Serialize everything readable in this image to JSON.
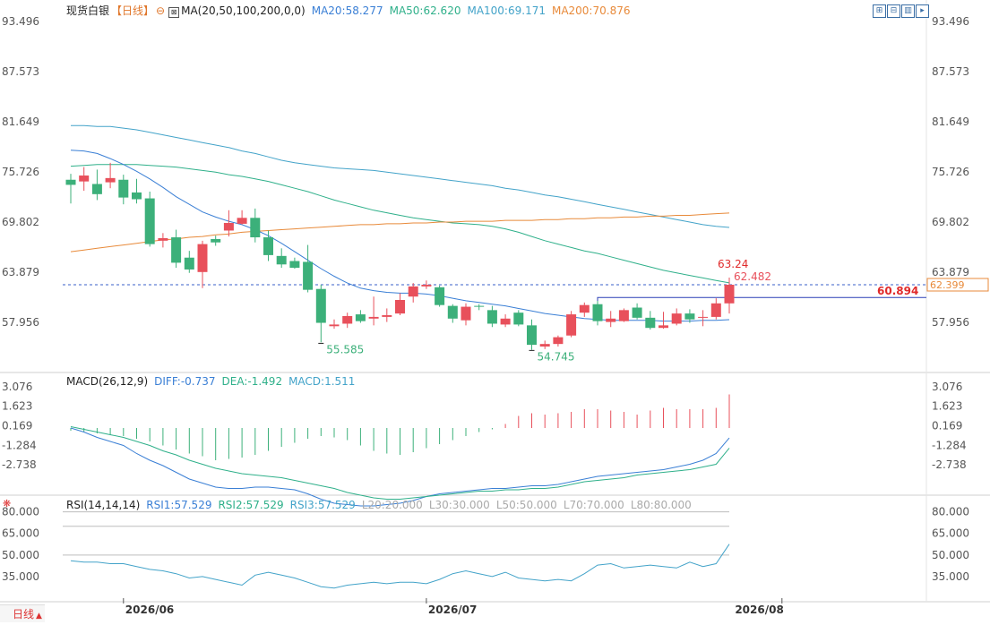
{
  "header": {
    "symbol": "现货白银",
    "period": "【日线】",
    "ma_params": "MA(20,50,100,200,0,0)",
    "ma20": "MA20:58.277",
    "ma50": "MA50:62.620",
    "ma100": "MA100:69.171",
    "ma200": "MA200:70.876"
  },
  "macd_header": {
    "params": "MACD(26,12,9)",
    "diff": "DIFF:-0.737",
    "dea": "DEA:-1.492",
    "macd": "MACD:1.511"
  },
  "rsi_header": {
    "params": "RSI(14,14,14)",
    "rsi1": "RSI1:57.529",
    "rsi2": "RSI2:57.529",
    "rsi3": "RSI3:57.529",
    "l20": "L20:20.000",
    "l30": "L30:30.000",
    "l50": "L50:50.000",
    "l70": "L70:70.000",
    "l80": "L80:80.000"
  },
  "bottom_bar": {
    "period_label": "日线",
    "arrow": "▲"
  },
  "colors": {
    "up": "#e8505b",
    "down": "#3cb07a",
    "ma20": "#3a7fd5",
    "ma50": "#2fb08a",
    "ma100": "#43a3c9",
    "ma200": "#e88a3a",
    "price_line": "#3a5fc8",
    "grid": "#e3e3e3"
  },
  "icons": [
    "settings-icon",
    "toolbar-icon-1",
    "toolbar-icon-2",
    "toolbar-icon-3",
    "toolbar-icon-4"
  ],
  "chart_data": [
    {
      "type": "candlestick",
      "title": "现货白银【日线】",
      "x_labels": [
        "2026/06",
        "2026/07",
        "2026/08"
      ],
      "x_label_index": [
        4,
        27,
        54
      ],
      "y_ticks": [
        "93.496",
        "87.573",
        "81.649",
        "75.726",
        "69.802",
        "63.879",
        "57.956"
      ],
      "ylim": [
        51.4,
        93.496
      ],
      "ohlc": [
        [
          74.8,
          75.5,
          72.0,
          74.2
        ],
        [
          74.6,
          76.3,
          73.5,
          75.3
        ],
        [
          74.3,
          76.0,
          72.4,
          73.1
        ],
        [
          74.5,
          76.8,
          73.8,
          75.0
        ],
        [
          74.8,
          75.4,
          71.9,
          72.7
        ],
        [
          73.3,
          74.9,
          72.0,
          72.5
        ],
        [
          72.6,
          73.4,
          66.9,
          67.2
        ],
        [
          67.6,
          68.5,
          66.8,
          67.9
        ],
        [
          68.0,
          68.9,
          64.4,
          65.0
        ],
        [
          65.6,
          66.4,
          63.8,
          64.2
        ],
        [
          63.9,
          67.6,
          62.0,
          67.2
        ],
        [
          67.8,
          68.2,
          67.0,
          67.4
        ],
        [
          68.8,
          71.2,
          68.1,
          69.7
        ],
        [
          69.6,
          71.2,
          69.5,
          70.3
        ],
        [
          70.3,
          71.4,
          67.4,
          68.0
        ],
        [
          68.0,
          68.8,
          65.2,
          65.9
        ],
        [
          65.8,
          66.7,
          64.4,
          64.8
        ],
        [
          65.2,
          65.6,
          64.3,
          64.4
        ],
        [
          65.1,
          67.1,
          61.5,
          61.8
        ],
        [
          61.9,
          62.4,
          55.6,
          57.9
        ],
        [
          57.5,
          58.3,
          57.2,
          57.7
        ],
        [
          57.8,
          59.1,
          57.3,
          58.7
        ],
        [
          58.9,
          59.4,
          57.9,
          58.1
        ],
        [
          58.4,
          61.0,
          57.6,
          58.6
        ],
        [
          58.6,
          59.6,
          58.0,
          58.8
        ],
        [
          59.0,
          61.4,
          58.8,
          60.6
        ],
        [
          61.0,
          62.6,
          60.3,
          62.2
        ],
        [
          62.2,
          62.9,
          61.9,
          62.4
        ],
        [
          62.1,
          62.3,
          59.8,
          60.0
        ],
        [
          59.9,
          60.1,
          57.9,
          58.4
        ],
        [
          58.2,
          60.2,
          57.6,
          59.8
        ],
        [
          59.9,
          60.1,
          59.4,
          59.8
        ],
        [
          59.4,
          59.9,
          57.4,
          57.8
        ],
        [
          57.7,
          58.9,
          57.4,
          58.4
        ],
        [
          59.1,
          59.4,
          57.5,
          57.7
        ],
        [
          57.6,
          58.3,
          54.7,
          55.3
        ],
        [
          55.1,
          55.8,
          54.8,
          55.4
        ],
        [
          55.4,
          56.4,
          55.1,
          56.2
        ],
        [
          56.4,
          59.3,
          56.2,
          58.9
        ],
        [
          59.1,
          60.3,
          58.6,
          60.0
        ],
        [
          60.1,
          60.5,
          57.6,
          58.1
        ],
        [
          58.0,
          59.3,
          57.4,
          58.4
        ],
        [
          58.1,
          59.6,
          58.0,
          59.4
        ],
        [
          59.7,
          60.2,
          58.3,
          58.5
        ],
        [
          58.5,
          59.3,
          57.1,
          57.3
        ],
        [
          57.3,
          59.2,
          57.2,
          57.6
        ],
        [
          57.8,
          59.6,
          57.6,
          59.0
        ],
        [
          59.0,
          59.5,
          57.9,
          58.3
        ],
        [
          58.6,
          59.4,
          57.5,
          58.6
        ],
        [
          58.6,
          60.8,
          58.3,
          60.2
        ],
        [
          60.2,
          63.24,
          59.0,
          62.399
        ]
      ],
      "ma20": [
        78.3,
        78.2,
        77.9,
        77.3,
        76.6,
        75.8,
        74.9,
        73.9,
        72.8,
        71.9,
        71.0,
        70.4,
        69.9,
        69.5,
        68.9,
        68.2,
        67.3,
        66.3,
        65.3,
        64.3,
        63.4,
        62.6,
        62.0,
        61.7,
        61.5,
        61.4,
        61.4,
        61.3,
        61.1,
        60.8,
        60.5,
        60.3,
        60.1,
        59.9,
        59.6,
        59.3,
        59.0,
        58.8,
        58.6,
        58.4,
        58.3,
        58.2,
        58.2,
        58.2,
        58.2,
        58.1,
        58.1,
        58.1,
        58.2,
        58.2,
        58.277
      ],
      "ma50": [
        76.4,
        76.5,
        76.6,
        76.6,
        76.6,
        76.6,
        76.5,
        76.4,
        76.3,
        76.1,
        75.9,
        75.7,
        75.4,
        75.2,
        74.9,
        74.6,
        74.2,
        73.8,
        73.4,
        72.9,
        72.4,
        72.0,
        71.6,
        71.2,
        70.9,
        70.6,
        70.3,
        70.1,
        69.9,
        69.7,
        69.6,
        69.5,
        69.3,
        69.0,
        68.6,
        68.1,
        67.6,
        67.2,
        66.8,
        66.4,
        66.1,
        65.7,
        65.3,
        64.9,
        64.5,
        64.1,
        63.8,
        63.5,
        63.2,
        62.9,
        62.62
      ],
      "ma100": [
        81.2,
        81.2,
        81.1,
        81.1,
        80.9,
        80.7,
        80.4,
        80.1,
        79.8,
        79.5,
        79.2,
        78.9,
        78.6,
        78.2,
        77.9,
        77.5,
        77.1,
        76.8,
        76.6,
        76.4,
        76.2,
        76.1,
        76.0,
        75.9,
        75.7,
        75.5,
        75.3,
        75.1,
        74.9,
        74.7,
        74.5,
        74.3,
        74.1,
        73.8,
        73.6,
        73.3,
        73.0,
        72.8,
        72.5,
        72.2,
        71.9,
        71.6,
        71.3,
        71.0,
        70.7,
        70.4,
        70.1,
        69.8,
        69.5,
        69.3,
        69.171
      ],
      "ma200": [
        66.3,
        66.5,
        66.7,
        66.9,
        67.1,
        67.3,
        67.5,
        67.7,
        67.8,
        68.0,
        68.1,
        68.3,
        68.4,
        68.6,
        68.7,
        68.8,
        68.9,
        69.0,
        69.1,
        69.2,
        69.3,
        69.4,
        69.5,
        69.5,
        69.6,
        69.6,
        69.7,
        69.7,
        69.8,
        69.8,
        69.9,
        69.9,
        69.9,
        70.0,
        70.0,
        70.0,
        70.1,
        70.1,
        70.2,
        70.2,
        70.3,
        70.3,
        70.4,
        70.4,
        70.5,
        70.5,
        70.6,
        70.6,
        70.7,
        70.8,
        70.876
      ],
      "current_price": "62.399",
      "current_price_value": 62.399,
      "level_line_value": 60.894,
      "level_line_label": "60.894",
      "annotations": [
        {
          "text": "55.585",
          "value": 55.585,
          "index": 19
        },
        {
          "text": "54.745",
          "value": 54.745,
          "index": 35
        },
        {
          "text": "63.24",
          "value": 63.24,
          "index": 50
        },
        {
          "text": "62.482",
          "value": 62.482,
          "index": 50
        }
      ]
    },
    {
      "type": "bar",
      "title": "MACD(26,12,9)",
      "y_ticks": [
        "3.076",
        "1.623",
        "0.169",
        "-1.284",
        "-2.738"
      ],
      "ylim": [
        -4.8,
        3.6
      ],
      "macd_hist": [
        -0.2,
        -0.3,
        -0.4,
        -0.5,
        -0.6,
        -0.8,
        -1.0,
        -1.3,
        -1.6,
        -1.9,
        -2.1,
        -2.4,
        -2.3,
        -2.2,
        -2.0,
        -1.7,
        -1.4,
        -1.1,
        -0.8,
        -0.6,
        -0.7,
        -0.9,
        -1.3,
        -1.7,
        -1.9,
        -2.0,
        -1.8,
        -1.5,
        -1.2,
        -0.9,
        -0.6,
        -0.3,
        -0.1,
        0.3,
        0.9,
        1.1,
        1.0,
        1.1,
        1.2,
        1.4,
        1.4,
        1.3,
        1.2,
        1.0,
        1.3,
        1.5,
        1.4,
        1.4,
        1.4,
        1.5,
        2.5
      ],
      "diff": [
        0.0,
        -0.3,
        -0.7,
        -1.0,
        -1.3,
        -1.9,
        -2.4,
        -2.8,
        -3.3,
        -3.8,
        -4.1,
        -4.4,
        -4.5,
        -4.5,
        -4.4,
        -4.4,
        -4.5,
        -4.6,
        -4.9,
        -5.3,
        -5.6,
        -5.7,
        -5.8,
        -5.8,
        -5.7,
        -5.6,
        -5.4,
        -5.1,
        -4.9,
        -4.8,
        -4.7,
        -4.6,
        -4.5,
        -4.5,
        -4.4,
        -4.3,
        -4.3,
        -4.2,
        -4.0,
        -3.8,
        -3.6,
        -3.5,
        -3.4,
        -3.3,
        -3.2,
        -3.1,
        -2.9,
        -2.7,
        -2.4,
        -1.9,
        -0.737
      ],
      "dea": [
        0.1,
        -0.1,
        -0.3,
        -0.5,
        -0.7,
        -1.0,
        -1.3,
        -1.7,
        -2.0,
        -2.4,
        -2.7,
        -3.0,
        -3.2,
        -3.4,
        -3.5,
        -3.6,
        -3.7,
        -3.9,
        -4.1,
        -4.3,
        -4.5,
        -4.8,
        -5.0,
        -5.2,
        -5.3,
        -5.3,
        -5.2,
        -5.1,
        -5.0,
        -4.9,
        -4.8,
        -4.7,
        -4.7,
        -4.6,
        -4.6,
        -4.5,
        -4.5,
        -4.4,
        -4.2,
        -4.0,
        -3.9,
        -3.8,
        -3.7,
        -3.5,
        -3.4,
        -3.3,
        -3.2,
        -3.1,
        -2.9,
        -2.7,
        -1.492
      ]
    },
    {
      "type": "line",
      "title": "RSI(14,14,14)",
      "y_ticks": [
        "80.000",
        "65.000",
        "50.000",
        "35.000"
      ],
      "ylim": [
        20,
        86
      ],
      "ref_levels": [
        80,
        70,
        50
      ],
      "rsi": [
        46,
        45,
        45,
        44,
        44,
        42,
        40,
        39,
        37,
        34,
        35,
        33,
        31,
        29,
        36,
        38,
        36,
        34,
        31,
        28,
        27,
        29,
        30,
        31,
        30,
        31,
        31,
        30,
        33,
        37,
        39,
        37,
        35,
        38,
        34,
        33,
        32,
        33,
        32,
        37,
        43,
        44,
        41,
        42,
        43,
        42,
        41,
        45,
        42,
        44,
        57.529
      ]
    }
  ]
}
